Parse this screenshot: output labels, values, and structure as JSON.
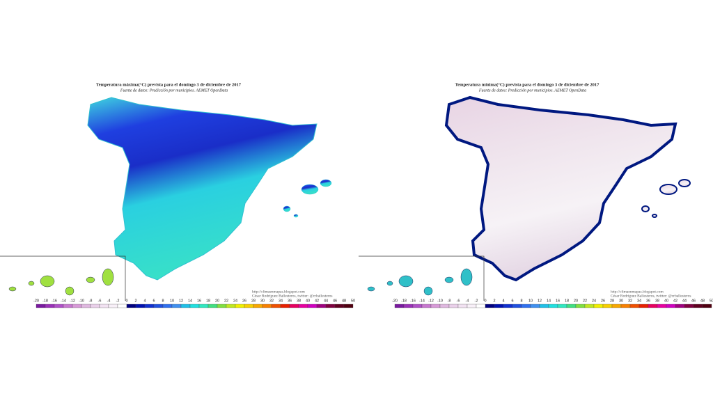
{
  "maps": [
    {
      "title": "Temperatura máxima(°C) prevista para el domingo 3 de diciembre de 2017",
      "source": "Fuente de datos: Predicción por municipios. AEMET OpenData",
      "credits": [
        "http://climaenmapas.blogspot.com",
        "César Rodríguez Ballesteros, twitter: @crballesteros"
      ]
    },
    {
      "title": "Temperatura mínima(°C) prevista para el domingo 3 de diciembre de 2017",
      "source": "Fuente de datos: Predicción por municipios. AEMET OpenData",
      "credits": [
        "http://climaenmapas.blogspot.com",
        "César Rodríguez Ballesteros, twitter: @crballesteros"
      ]
    }
  ],
  "scale": [
    "-20",
    "-18",
    "-16",
    "-14",
    "-12",
    "-10",
    "-8",
    "-6",
    "-4",
    "-2",
    "0",
    "2",
    "4",
    "6",
    "8",
    "10",
    "12",
    "14",
    "16",
    "18",
    "20",
    "22",
    "24",
    "26",
    "28",
    "30",
    "32",
    "34",
    "36",
    "38",
    "40",
    "42",
    "44",
    "46",
    "48",
    "50"
  ]
}
